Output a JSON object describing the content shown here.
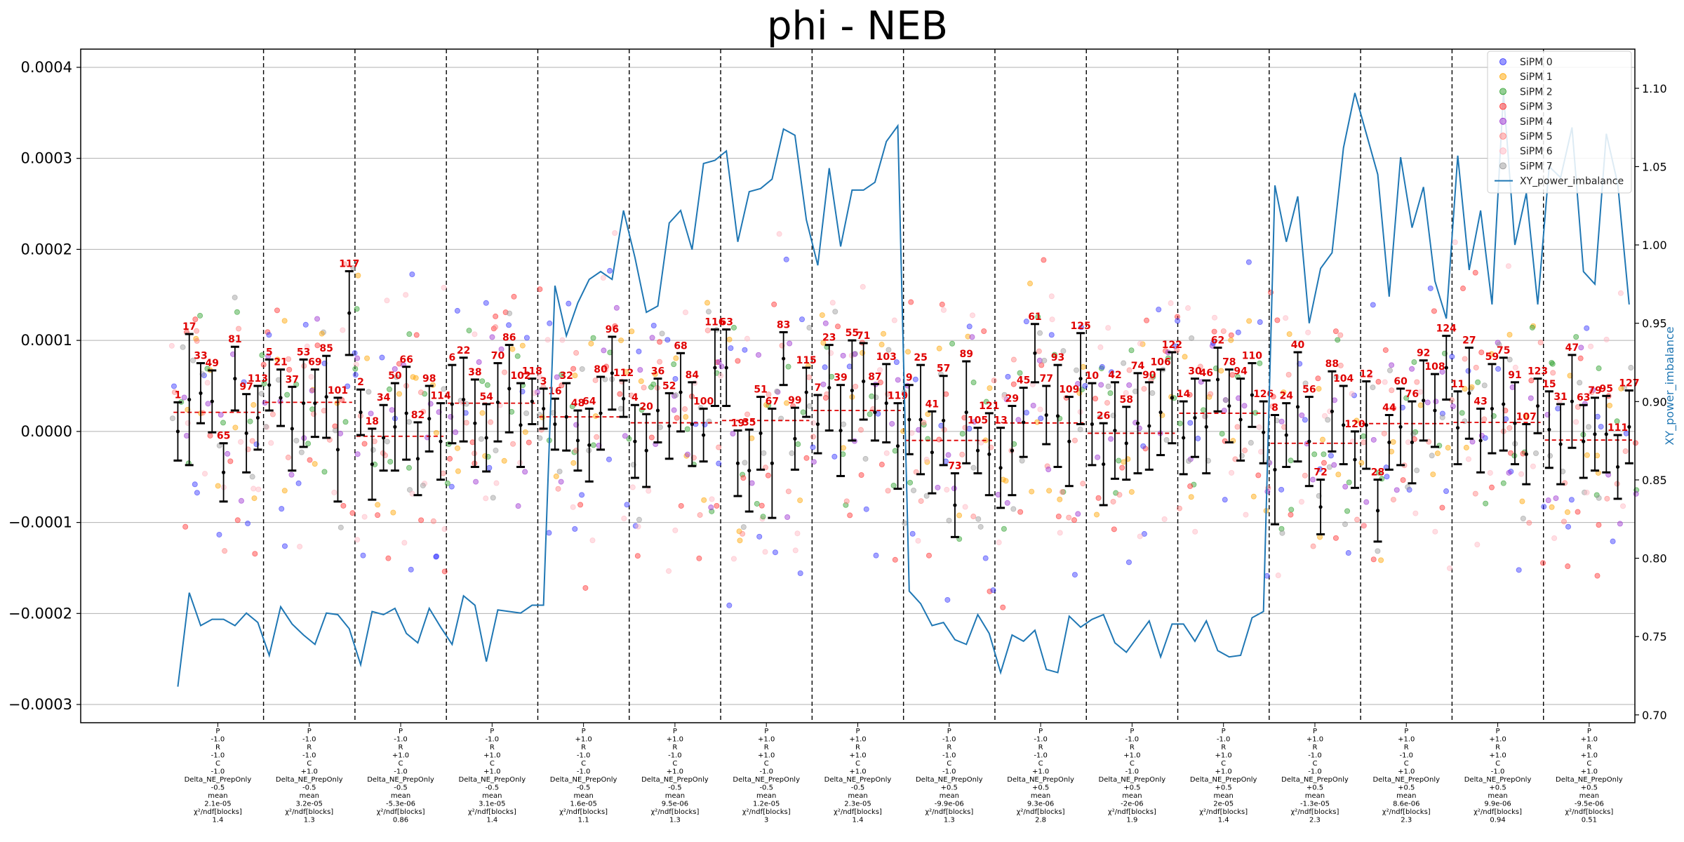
{
  "chart_data": {
    "type": "scatter",
    "title": "phi - NEB",
    "y_left": {
      "label": "",
      "lim": [
        -0.00032,
        0.00042
      ],
      "ticks": [
        -0.0003,
        -0.0002,
        -0.0001,
        0.0,
        0.0001,
        0.0002,
        0.0003,
        0.0004
      ],
      "tick_labels": [
        "−0.0003",
        "−0.0002",
        "−0.0001",
        "0.0000",
        "0.0001",
        "0.0002",
        "0.0003",
        "0.0004"
      ]
    },
    "y_right": {
      "label": "XY_power_imbalance",
      "lim": [
        0.695,
        1.125
      ],
      "ticks": [
        0.7,
        0.75,
        0.8,
        0.85,
        0.9,
        0.95,
        1.0,
        1.05,
        1.1
      ],
      "tick_labels": [
        "0.70",
        "0.75",
        "0.80",
        "0.85",
        "0.90",
        "0.95",
        "1.00",
        "1.05",
        "1.10"
      ]
    },
    "grid": "horizontal",
    "legend_position": "top-right",
    "legend": [
      "SiPM 0",
      "SiPM 1",
      "SiPM 2",
      "SiPM 3",
      "SiPM 4",
      "SiPM 5",
      "SiPM 6",
      "SiPM 7",
      "XY_power_imbalance"
    ],
    "sipm_colors": [
      "#3333ff",
      "#ffa500",
      "#2ca02c",
      "#ff3030",
      "#9b30d0",
      "#ff7f7f",
      "#ffb6c1",
      "#999999"
    ],
    "line_color": "#1f77b4",
    "errorbar_color": "#000000",
    "mean_line_color": "#e00000",
    "label_color": "#e00000",
    "groups": [
      {
        "lines": [
          "P",
          "-1.0",
          "R",
          "-1.0",
          "C",
          "-1.0",
          "Delta_NE_PrepOnly",
          "-0.5",
          "mean",
          "2.1e-05",
          "χ²/ndf[blocks]",
          "1.4"
        ],
        "mean": 2.1e-05
      },
      {
        "lines": [
          "P",
          "-1.0",
          "R",
          "-1.0",
          "C",
          "+1.0",
          "Delta_NE_PrepOnly",
          "-0.5",
          "mean",
          "3.2e-05",
          "χ²/ndf[blocks]",
          "1.3"
        ],
        "mean": 3.2e-05
      },
      {
        "lines": [
          "P",
          "-1.0",
          "R",
          "+1.0",
          "C",
          "-1.0",
          "Delta_NE_PrepOnly",
          "-0.5",
          "mean",
          "-5.3e-06",
          "χ²/ndf[blocks]",
          "0.86"
        ],
        "mean": -5.3e-06
      },
      {
        "lines": [
          "P",
          "-1.0",
          "R",
          "+1.0",
          "C",
          "+1.0",
          "Delta_NE_PrepOnly",
          "-0.5",
          "mean",
          "3.1e-05",
          "χ²/ndf[blocks]",
          "1.4"
        ],
        "mean": 3.1e-05
      },
      {
        "lines": [
          "P",
          "+1.0",
          "R",
          "-1.0",
          "C",
          "-1.0",
          "Delta_NE_PrepOnly",
          "-0.5",
          "mean",
          "1.6e-05",
          "χ²/ndf[blocks]",
          "1.1"
        ],
        "mean": 1.6e-05
      },
      {
        "lines": [
          "P",
          "+1.0",
          "R",
          "-1.0",
          "C",
          "+1.0",
          "Delta_NE_PrepOnly",
          "-0.5",
          "mean",
          "9.5e-06",
          "χ²/ndf[blocks]",
          "1.3"
        ],
        "mean": 9.5e-06
      },
      {
        "lines": [
          "P",
          "+1.0",
          "R",
          "+1.0",
          "C",
          "-1.0",
          "Delta_NE_PrepOnly",
          "-0.5",
          "mean",
          "1.2e-05",
          "χ²/ndf[blocks]",
          "3"
        ],
        "mean": 1.2e-05
      },
      {
        "lines": [
          "P",
          "+1.0",
          "R",
          "+1.0",
          "C",
          "+1.0",
          "Delta_NE_PrepOnly",
          "-0.5",
          "mean",
          "2.3e-05",
          "χ²/ndf[blocks]",
          "1.4"
        ],
        "mean": 2.3e-05
      },
      {
        "lines": [
          "P",
          "-1.0",
          "R",
          "-1.0",
          "C",
          "-1.0",
          "Delta_NE_PrepOnly",
          "+0.5",
          "mean",
          "-9.9e-06",
          "χ²/ndf[blocks]",
          "1.3"
        ],
        "mean": -9.9e-06
      },
      {
        "lines": [
          "P",
          "-1.0",
          "R",
          "-1.0",
          "C",
          "+1.0",
          "Delta_NE_PrepOnly",
          "+0.5",
          "mean",
          "9.3e-06",
          "χ²/ndf[blocks]",
          "2.8"
        ],
        "mean": 9.3e-06
      },
      {
        "lines": [
          "P",
          "-1.0",
          "R",
          "+1.0",
          "C",
          "-1.0",
          "Delta_NE_PrepOnly",
          "+0.5",
          "mean",
          "-2e-06",
          "χ²/ndf[blocks]",
          "1.9"
        ],
        "mean": -2e-06
      },
      {
        "lines": [
          "P",
          "-1.0",
          "R",
          "+1.0",
          "C",
          "+1.0",
          "Delta_NE_PrepOnly",
          "+0.5",
          "mean",
          "2e-05",
          "χ²/ndf[blocks]",
          "1.4"
        ],
        "mean": 2e-05
      },
      {
        "lines": [
          "P",
          "+1.0",
          "R",
          "-1.0",
          "C",
          "-1.0",
          "Delta_NE_PrepOnly",
          "+0.5",
          "mean",
          "-1.3e-05",
          "χ²/ndf[blocks]",
          "2.3"
        ],
        "mean": -1.3e-05
      },
      {
        "lines": [
          "P",
          "+1.0",
          "R",
          "-1.0",
          "C",
          "+1.0",
          "Delta_NE_PrepOnly",
          "+0.5",
          "mean",
          "8.6e-06",
          "χ²/ndf[blocks]",
          "2.3"
        ],
        "mean": 8.6e-06
      },
      {
        "lines": [
          "P",
          "+1.0",
          "R",
          "+1.0",
          "C",
          "-1.0",
          "Delta_NE_PrepOnly",
          "+0.5",
          "mean",
          "9.9e-06",
          "χ²/ndf[blocks]",
          "0.94"
        ],
        "mean": 9.9e-06
      },
      {
        "lines": [
          "P",
          "+1.0",
          "R",
          "+1.0",
          "C",
          "+1.0",
          "Delta_NE_PrepOnly",
          "+0.5",
          "mean",
          "-9.5e-06",
          "χ²/ndf[blocks]",
          "0.51"
        ],
        "mean": -9.5e-06
      }
    ],
    "blocks": [
      [
        [
          1,
          0.0,
          3.2e-05
        ],
        [
          17,
          3.5e-05,
          7.2e-05
        ],
        [
          33,
          4.2e-05,
          3.3e-05
        ],
        [
          49,
          3.3e-05,
          3.4e-05
        ],
        [
          65,
          -4.5e-05,
          3.2e-05
        ],
        [
          81,
          5.8e-05,
          3.5e-05
        ],
        [
          97,
          -2e-06,
          4.3e-05
        ],
        [
          113,
          1.5e-05,
          3.5e-05
        ]
      ],
      [
        [
          5,
          5.1e-05,
          2.8e-05
        ],
        [
          21,
          3.7e-05,
          3.1e-05
        ],
        [
          37,
          3e-06,
          4.6e-05
        ],
        [
          53,
          3.1e-05,
          4.8e-05
        ],
        [
          69,
          3.1e-05,
          3.7e-05
        ],
        [
          85,
          3.8e-05,
          4.5e-05
        ],
        [
          101,
          -2e-05,
          5.7e-05
        ],
        [
          117,
          0.00013,
          4.6e-05
        ]
      ],
      [
        [
          2,
          2.1e-05,
          2.5e-05
        ],
        [
          18,
          -3.6e-05,
          3.9e-05
        ],
        [
          34,
          -7e-06,
          3.6e-05
        ],
        [
          50,
          5e-06,
          4.8e-05
        ],
        [
          66,
          2e-05,
          5.1e-05
        ],
        [
          82,
          -3e-05,
          4e-05
        ],
        [
          98,
          1.4e-05,
          3.6e-05
        ],
        [
          114,
          -1.1e-05,
          4.2e-05
        ]
      ],
      [
        [
          6,
          3e-05,
          4.3e-05
        ],
        [
          22,
          3.5e-05,
          4.6e-05
        ],
        [
          38,
          9e-06,
          4.8e-05
        ],
        [
          54,
          -7e-06,
          3.7e-05
        ],
        [
          70,
          3.2e-05,
          4.3e-05
        ],
        [
          86,
          4.7e-05,
          4.8e-05
        ],
        [
          102,
          7e-06,
          4.6e-05
        ],
        [
          118,
          3.3e-05,
          2.5e-05
        ]
      ],
      [
        [
          3,
          2.5e-05,
          2.2e-05
        ],
        [
          16,
          8e-06,
          2.8e-05
        ],
        [
          32,
          1.6e-05,
          3.7e-05
        ],
        [
          48,
          -1e-05,
          3.3e-05
        ],
        [
          64,
          -1.5e-05,
          4e-05
        ],
        [
          80,
          2e-05,
          4e-05
        ],
        [
          96,
          6.4e-05,
          4e-05
        ],
        [
          112,
          3.6e-05,
          2e-05
        ]
      ],
      [
        [
          4,
          -1.1e-05,
          4e-05
        ],
        [
          20,
          -2.1e-05,
          4e-05
        ],
        [
          36,
          2.3e-05,
          3.5e-05
        ],
        [
          52,
          6e-06,
          3.6e-05
        ],
        [
          68,
          4.3e-05,
          4.3e-05
        ],
        [
          84,
          8e-06,
          4.6e-05
        ],
        [
          100,
          -4e-06,
          2.9e-05
        ],
        [
          116,
          7e-05,
          4.2e-05
        ]
      ],
      [
        [
          63,
          7e-05,
          4.2e-05
        ],
        [
          19,
          -3.5e-05,
          3.6e-05
        ],
        [
          35,
          -4.3e-05,
          4.5e-05
        ],
        [
          51,
          -2e-06,
          4e-05
        ],
        [
          67,
          -3.5e-05,
          6e-05
        ],
        [
          83,
          8e-05,
          2.9e-05
        ],
        [
          99,
          -8e-06,
          3.4e-05
        ],
        [
          115,
          4.3e-05,
          2.7e-05
        ]
      ],
      [
        [
          7,
          8e-06,
          3.2e-05
        ],
        [
          23,
          4.8e-05,
          4.7e-05
        ],
        [
          39,
          1e-06,
          5e-05
        ],
        [
          55,
          4.5e-05,
          5.5e-05
        ],
        [
          71,
          5.5e-05,
          4.2e-05
        ],
        [
          87,
          2.1e-05,
          3.1e-05
        ],
        [
          103,
          3.1e-05,
          4.3e-05
        ],
        [
          119,
          -1.6e-05,
          4.7e-05
        ]
      ],
      [
        [
          9,
          1.3e-05,
          3.8e-05
        ],
        [
          25,
          1.3e-05,
          6e-05
        ],
        [
          41,
          -2.3e-05,
          4.5e-05
        ],
        [
          57,
          1.2e-05,
          4.9e-05
        ],
        [
          73,
          -8.1e-05,
          3.5e-05
        ],
        [
          89,
          2.1e-05,
          5.6e-05
        ],
        [
          105,
          -2.1e-05,
          2.5e-05
        ],
        [
          121,
          -2.5e-05,
          4.5e-05
        ]
      ],
      [
        [
          13,
          -4e-05,
          4.4e-05
        ],
        [
          29,
          -2.1e-05,
          4.9e-05
        ],
        [
          45,
          1e-05,
          3.8e-05
        ],
        [
          61,
          8.6e-05,
          3.2e-05
        ],
        [
          77,
          1.8e-05,
          3.2e-05
        ],
        [
          93,
          1.7e-05,
          5.6e-05
        ],
        [
          109,
          -1.1e-05,
          4.9e-05
        ],
        [
          125,
          5.8e-05,
          5e-05
        ]
      ],
      [
        [
          10,
          8e-06,
          4.5e-05
        ],
        [
          26,
          -3.6e-05,
          4.5e-05
        ],
        [
          42,
          1e-06,
          5.3e-05
        ],
        [
          58,
          -1.3e-05,
          4e-05
        ],
        [
          74,
          9e-06,
          5.5e-05
        ],
        [
          90,
          6e-06,
          4.8e-05
        ],
        [
          106,
          2.1e-05,
          4.7e-05
        ],
        [
          122,
          3.7e-05,
          5e-05
        ]
      ],
      [
        [
          14,
          -7e-06,
          4e-05
        ],
        [
          30,
          1.5e-05,
          4.3e-05
        ],
        [
          46,
          5e-06,
          5.1e-05
        ],
        [
          62,
          5.7e-05,
          3.5e-05
        ],
        [
          78,
          2.8e-05,
          4e-05
        ],
        [
          94,
          1.3e-05,
          4.5e-05
        ],
        [
          110,
          4e-05,
          3.5e-05
        ],
        [
          126,
          -1e-06,
          3.4e-05
        ]
      ],
      [
        [
          8,
          -4.2e-05,
          6e-05
        ],
        [
          24,
          -4e-06,
          3.5e-05
        ],
        [
          40,
          2.7e-05,
          6e-05
        ],
        [
          56,
          -1.1e-05,
          4.9e-05
        ],
        [
          72,
          -8.3e-05,
          3e-05
        ],
        [
          88,
          2.2e-05,
          4.4e-05
        ],
        [
          104,
          7e-06,
          4.3e-05
        ],
        [
          120,
          -3.1e-05,
          3.1e-05
        ]
      ],
      [
        [
          12,
          7e-06,
          4.8e-05
        ],
        [
          28,
          -8.7e-05,
          3.4e-05
        ],
        [
          44,
          -1.2e-05,
          3e-05
        ],
        [
          60,
          5e-06,
          4.2e-05
        ],
        [
          76,
          -1.2e-05,
          4.5e-05
        ],
        [
          92,
          3.4e-05,
          4.4e-05
        ],
        [
          108,
          2.3e-05,
          4e-05
        ],
        [
          124,
          7e-05,
          3.5e-05
        ]
      ],
      [
        [
          11,
          4e-06,
          4e-05
        ],
        [
          27,
          4.2e-05,
          5e-05
        ],
        [
          43,
          -1e-05,
          3.5e-05
        ],
        [
          59,
          2.5e-05,
          4.9e-05
        ],
        [
          75,
          3e-05,
          5.1e-05
        ],
        [
          91,
          9e-06,
          4.5e-05
        ],
        [
          107,
          -2.5e-05,
          3.3e-05
        ],
        [
          123,
          2.8e-05,
          3e-05
        ]
      ],
      [
        [
          15,
          2e-06,
          4.2e-05
        ],
        [
          31,
          -1.4e-05,
          4.4e-05
        ],
        [
          47,
          3.3e-05,
          5.1e-05
        ],
        [
          63,
          -1.1e-05,
          4e-05
        ],
        [
          79,
          -3e-06,
          4e-05
        ],
        [
          95,
          -3e-06,
          4.2e-05
        ],
        [
          111,
          -3.9e-05,
          3.5e-05
        ],
        [
          127,
          5e-06,
          4e-05
        ]
      ]
    ],
    "xy_power_imbalance": [
      0.718,
      0.778,
      0.757,
      0.761,
      0.761,
      0.757,
      0.765,
      0.759,
      0.738,
      0.769,
      0.758,
      0.751,
      0.745,
      0.765,
      0.764,
      0.755,
      0.732,
      0.766,
      0.764,
      0.768,
      0.752,
      0.746,
      0.768,
      0.756,
      0.745,
      0.776,
      0.77,
      0.734,
      0.767,
      0.766,
      0.765,
      0.77,
      0.77,
      0.974,
      0.942,
      0.963,
      0.978,
      0.983,
      0.978,
      1.022,
      0.992,
      0.957,
      0.961,
      1.014,
      1.022,
      0.997,
      1.052,
      1.054,
      1.06,
      1.002,
      1.034,
      1.036,
      1.042,
      1.074,
      1.07,
      1.016,
      0.987,
      1.049,
      0.999,
      1.035,
      1.035,
      1.04,
      1.066,
      1.076,
      0.779,
      0.771,
      0.757,
      0.759,
      0.748,
      0.745,
      0.764,
      0.752,
      0.727,
      0.751,
      0.747,
      0.754,
      0.729,
      0.727,
      0.763,
      0.756,
      0.761,
      0.764,
      0.746,
      0.74,
      0.75,
      0.76,
      0.737,
      0.758,
      0.758,
      0.747,
      0.76,
      0.741,
      0.737,
      0.738,
      0.762,
      0.766,
      1.038,
      1.002,
      1.031,
      0.95,
      0.985,
      0.995,
      1.062,
      1.097,
      1.071,
      1.045,
      0.967,
      1.056,
      1.011,
      1.037,
      0.977,
      0.953,
      1.057,
      0.984,
      1.022,
      0.962,
      1.097,
      1.0,
      1.033,
      0.962,
      1.05,
      1.043,
      1.075,
      0.983,
      0.975,
      1.071,
      1.039,
      0.962
    ]
  }
}
